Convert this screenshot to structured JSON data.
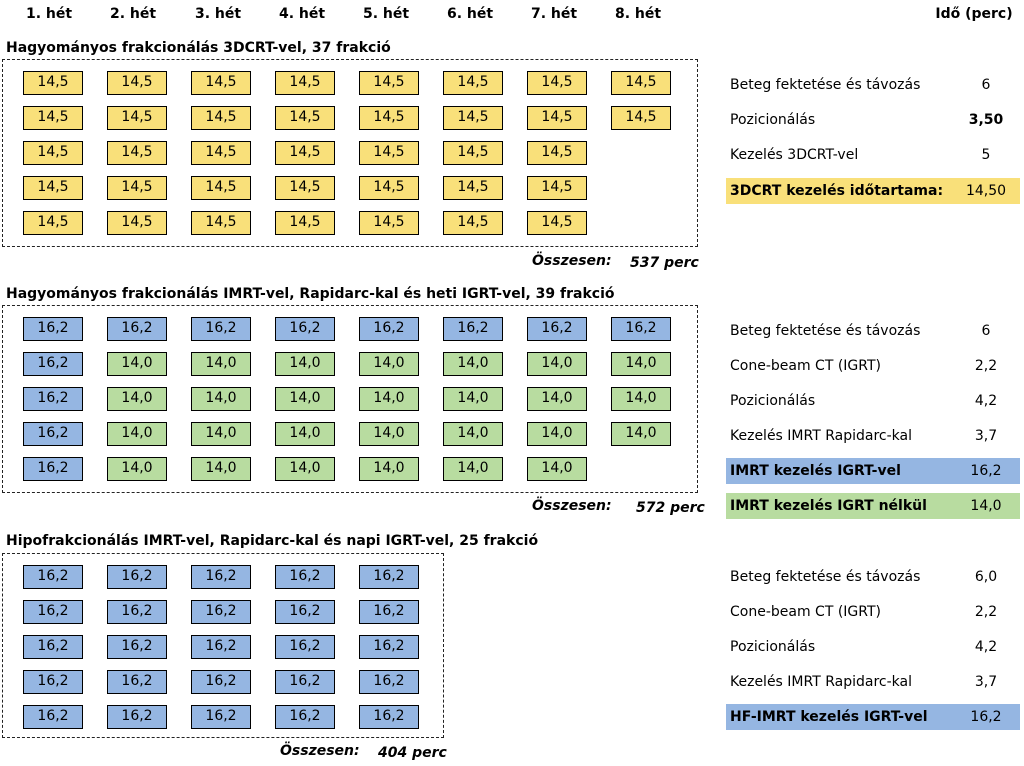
{
  "header": {
    "weeks": [
      "1. hét",
      "2. hét",
      "3. hét",
      "4. hét",
      "5. hét",
      "6. hét",
      "7. hét",
      "8. hét"
    ],
    "time_label": "Idő (perc)"
  },
  "sections": [
    {
      "title": "Hagyományos frakcionálás 3DCRT-vel, 37 frakció",
      "total_label": "Összesen:",
      "total_value": "537 perc",
      "cell_rows": [
        [
          "14,5",
          "14,5",
          "14,5",
          "14,5",
          "14,5",
          "14,5",
          "14,5",
          "14,5"
        ],
        [
          "14,5",
          "14,5",
          "14,5",
          "14,5",
          "14,5",
          "14,5",
          "14,5",
          "14,5"
        ],
        [
          "14,5",
          "14,5",
          "14,5",
          "14,5",
          "14,5",
          "14,5",
          "14,5"
        ],
        [
          "14,5",
          "14,5",
          "14,5",
          "14,5",
          "14,5",
          "14,5",
          "14,5"
        ],
        [
          "14,5",
          "14,5",
          "14,5",
          "14,5",
          "14,5",
          "14,5",
          "14,5"
        ]
      ],
      "breakdown": [
        {
          "label": "Beteg fektetése és távozás",
          "value": "6"
        },
        {
          "label": "Pozicionálás",
          "value": "3,50"
        },
        {
          "label": "Kezelés 3DCRT-vel",
          "value": "5"
        },
        {
          "label": "3DCRT kezelés időtartama:",
          "value": "14,50"
        }
      ]
    },
    {
      "title": "Hagyományos frakcionálás IMRT-vel, Rapidarc-kal és heti IGRT-vel, 39 frakció",
      "total_label": "Összesen:",
      "total_value": "572 perc",
      "cell_rows": [
        [
          "16,2",
          "16,2",
          "16,2",
          "16,2",
          "16,2",
          "16,2",
          "16,2",
          "16,2"
        ],
        [
          "16,2",
          "14,0",
          "14,0",
          "14,0",
          "14,0",
          "14,0",
          "14,0",
          "14,0"
        ],
        [
          "16,2",
          "14,0",
          "14,0",
          "14,0",
          "14,0",
          "14,0",
          "14,0",
          "14,0"
        ],
        [
          "16,2",
          "14,0",
          "14,0",
          "14,0",
          "14,0",
          "14,0",
          "14,0",
          "14,0"
        ],
        [
          "16,2",
          "14,0",
          "14,0",
          "14,0",
          "14,0",
          "14,0",
          "14,0"
        ]
      ],
      "breakdown": [
        {
          "label": "Beteg fektetése és távozás",
          "value": "6"
        },
        {
          "label": "Cone-beam CT (IGRT)",
          "value": "2,2"
        },
        {
          "label": "Pozicionálás",
          "value": "4,2"
        },
        {
          "label": "Kezelés IMRT Rapidarc-kal",
          "value": "3,7"
        },
        {
          "label": "IMRT kezelés IGRT-vel",
          "value": "16,2"
        },
        {
          "label": "IMRT kezelés IGRT nélkül",
          "value": "14,0"
        }
      ]
    },
    {
      "title": "Hipofrakcionálás IMRT-vel, Rapidarc-kal és napi IGRT-vel, 25 frakció",
      "total_label": "Összesen:",
      "total_value": "404 perc",
      "cell_rows": [
        [
          "16,2",
          "16,2",
          "16,2",
          "16,2",
          "16,2"
        ],
        [
          "16,2",
          "16,2",
          "16,2",
          "16,2",
          "16,2"
        ],
        [
          "16,2",
          "16,2",
          "16,2",
          "16,2",
          "16,2"
        ],
        [
          "16,2",
          "16,2",
          "16,2",
          "16,2",
          "16,2"
        ],
        [
          "16,2",
          "16,2",
          "16,2",
          "16,2",
          "16,2"
        ]
      ],
      "breakdown": [
        {
          "label": "Beteg fektetése és távozás",
          "value": "6,0"
        },
        {
          "label": "Cone-beam CT (IGRT)",
          "value": "2,2"
        },
        {
          "label": "Pozicionálás",
          "value": "4,2"
        },
        {
          "label": "Kezelés IMRT Rapidarc-kal",
          "value": "3,7"
        },
        {
          "label": "HF-IMRT kezelés IGRT-vel",
          "value": "16,2"
        }
      ]
    }
  ],
  "colors": {
    "yellow": "#f9e07a",
    "blue": "#95b6e2",
    "green": "#b8dca0"
  }
}
